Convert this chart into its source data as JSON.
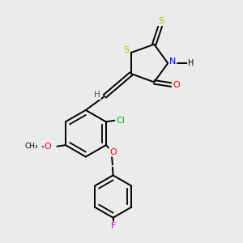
{
  "bg_color": "#ebebeb",
  "atom_colors": {
    "S": "#b8b800",
    "N": "#0000ff",
    "O": "#ff0000",
    "Cl": "#00bb00",
    "F": "#cc00cc",
    "H": "#555555"
  },
  "figsize": [
    3.0,
    3.0
  ],
  "dpi": 100
}
